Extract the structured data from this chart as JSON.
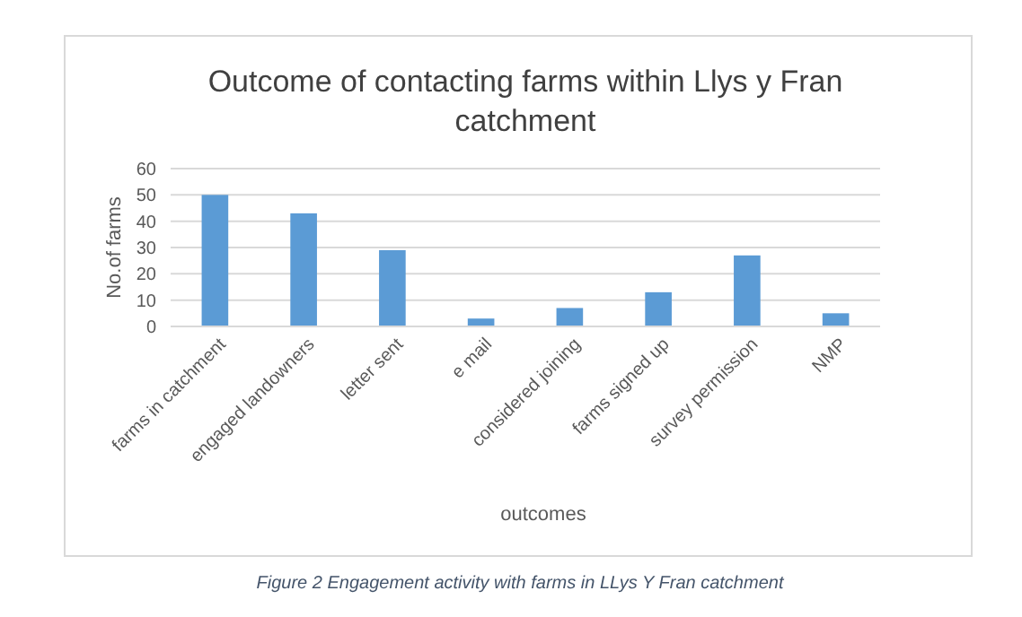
{
  "chart_data": {
    "type": "bar",
    "title": "Outcome of contacting farms within Llys y Fran catchment",
    "xlabel": "outcomes",
    "ylabel": "No.of farms",
    "categories": [
      "farms in catchment",
      "engaged landowners",
      "letter sent",
      "e mail",
      "considered joining",
      "farms signed up",
      "survey permission",
      "NMP"
    ],
    "values": [
      50,
      43,
      29,
      3,
      7,
      13,
      27,
      5
    ],
    "color": "#5b9bd5",
    "ylim": [
      0,
      60
    ],
    "yticks": [
      0,
      10,
      20,
      30,
      40,
      50,
      60
    ],
    "grid": "y",
    "annotations": [
      "Figure 2 Engagement activity with farms in LLys Y Fran catchment"
    ]
  }
}
